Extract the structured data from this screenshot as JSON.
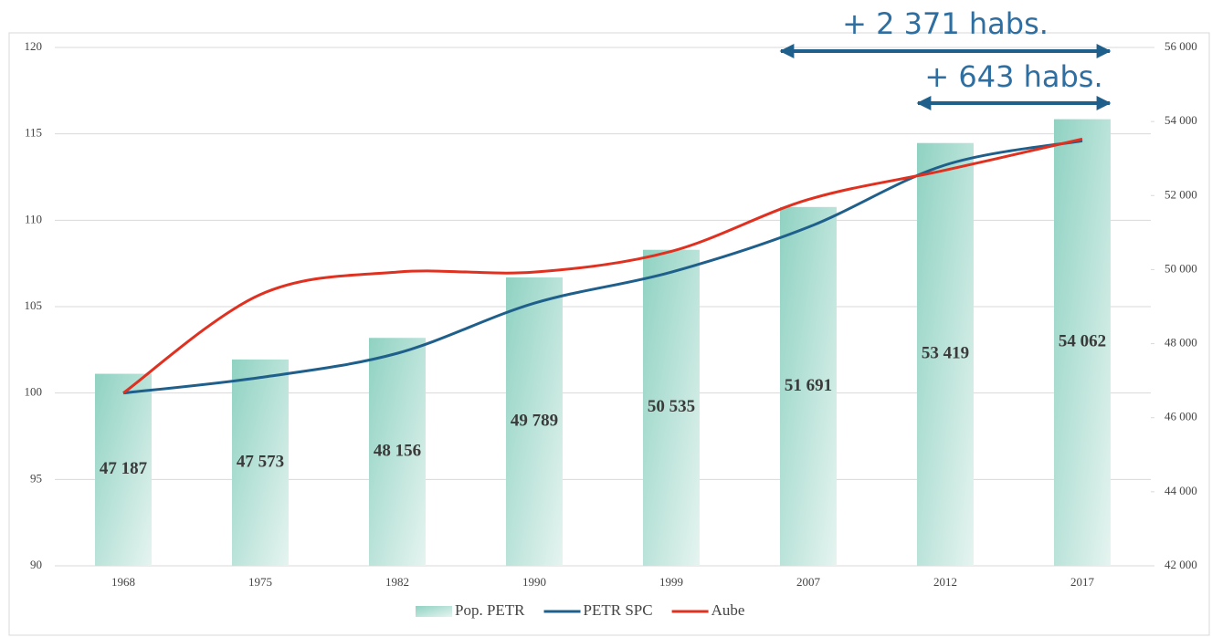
{
  "chart_data": {
    "type": "bar-line",
    "categories": [
      "1968",
      "1975",
      "1982",
      "1990",
      "1999",
      "2007",
      "2012",
      "2017"
    ],
    "series": [
      {
        "name": "Pop. PETR",
        "type": "bar",
        "axis": "y2",
        "color": "#8fd2c2",
        "values": [
          47187,
          47573,
          48156,
          49789,
          50535,
          51691,
          53419,
          54062
        ],
        "value_labels": [
          "47 187",
          "47 573",
          "48 156",
          "49 789",
          "50 535",
          "51 691",
          "53 419",
          "54 062"
        ]
      },
      {
        "name": "PETR SPC",
        "type": "line",
        "axis": "y",
        "color": "#1f5f8b",
        "values": [
          100,
          100.9,
          102.3,
          105.2,
          107.0,
          109.6,
          113.2,
          114.6
        ]
      },
      {
        "name": "Aube",
        "type": "line",
        "axis": "y",
        "color": "#e03020",
        "values": [
          100,
          105.7,
          107.0,
          107.0,
          108.2,
          111.2,
          112.9,
          114.7
        ]
      }
    ],
    "ylim": [
      90,
      120
    ],
    "yticks": [
      90,
      95,
      100,
      105,
      110,
      115,
      120
    ],
    "y2lim": [
      42000,
      56000
    ],
    "y2ticks": [
      {
        "value": 42000,
        "label": "42 000"
      },
      {
        "value": 44000,
        "label": "44 000"
      },
      {
        "value": 46000,
        "label": "46 000"
      },
      {
        "value": 48000,
        "label": "48 000"
      },
      {
        "value": 50000,
        "label": "50 000"
      },
      {
        "value": 52000,
        "label": "52 000"
      },
      {
        "value": 54000,
        "label": "54 000"
      },
      {
        "value": 56000,
        "label": "56 000"
      }
    ],
    "grid": true,
    "legend": "bottom",
    "annotations": [
      "+ 2 371 habs.",
      "+ 643 habs."
    ],
    "annotation_color": "#2e6ea0"
  }
}
